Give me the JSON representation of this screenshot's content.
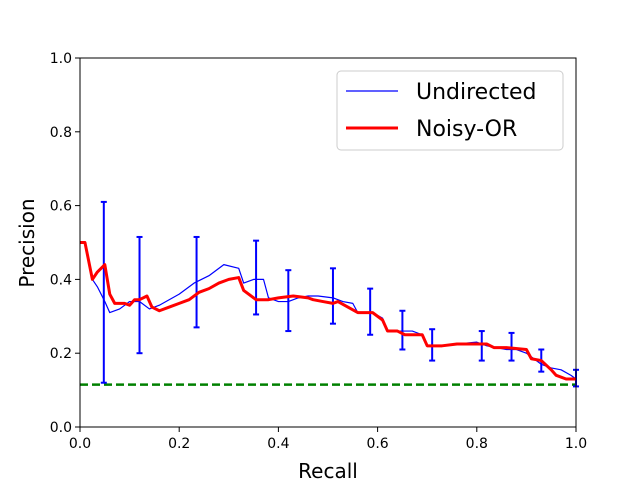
{
  "chart_data": {
    "type": "line",
    "xlabel": "Recall",
    "ylabel": "Precision",
    "xlim": [
      0.0,
      1.0
    ],
    "ylim": [
      0.0,
      1.0
    ],
    "xticks": [
      "0.0",
      "0.2",
      "0.4",
      "0.6",
      "0.8",
      "1.0"
    ],
    "yticks": [
      "0.0",
      "0.2",
      "0.4",
      "0.6",
      "0.8",
      "1.0"
    ],
    "grid": false,
    "legend_position": "top-right",
    "baseline": {
      "y": 0.115,
      "color": "#008000",
      "style": "dashed"
    },
    "series": [
      {
        "name": "Undirected",
        "color": "#0000ff",
        "points": [
          [
            0.0,
            0.5
          ],
          [
            0.01,
            0.5
          ],
          [
            0.025,
            0.4
          ],
          [
            0.035,
            0.38
          ],
          [
            0.05,
            0.34
          ],
          [
            0.06,
            0.31
          ],
          [
            0.08,
            0.32
          ],
          [
            0.1,
            0.34
          ],
          [
            0.12,
            0.34
          ],
          [
            0.14,
            0.32
          ],
          [
            0.16,
            0.33
          ],
          [
            0.2,
            0.36
          ],
          [
            0.23,
            0.39
          ],
          [
            0.26,
            0.41
          ],
          [
            0.29,
            0.44
          ],
          [
            0.32,
            0.43
          ],
          [
            0.33,
            0.39
          ],
          [
            0.35,
            0.4
          ],
          [
            0.37,
            0.4
          ],
          [
            0.38,
            0.35
          ],
          [
            0.4,
            0.34
          ],
          [
            0.42,
            0.34
          ],
          [
            0.44,
            0.35
          ],
          [
            0.46,
            0.355
          ],
          [
            0.48,
            0.355
          ],
          [
            0.51,
            0.35
          ],
          [
            0.53,
            0.34
          ],
          [
            0.55,
            0.335
          ],
          [
            0.56,
            0.31
          ],
          [
            0.59,
            0.31
          ],
          [
            0.61,
            0.295
          ],
          [
            0.62,
            0.26
          ],
          [
            0.65,
            0.26
          ],
          [
            0.67,
            0.26
          ],
          [
            0.69,
            0.25
          ],
          [
            0.7,
            0.22
          ],
          [
            0.73,
            0.22
          ],
          [
            0.76,
            0.225
          ],
          [
            0.8,
            0.23
          ],
          [
            0.82,
            0.22
          ],
          [
            0.84,
            0.215
          ],
          [
            0.86,
            0.21
          ],
          [
            0.88,
            0.21
          ],
          [
            0.9,
            0.2
          ],
          [
            0.91,
            0.19
          ],
          [
            0.93,
            0.17
          ],
          [
            0.95,
            0.16
          ],
          [
            0.97,
            0.155
          ],
          [
            0.99,
            0.14
          ],
          [
            1.0,
            0.13
          ]
        ],
        "error_bars": [
          {
            "x": 0.048,
            "y": 0.36,
            "low": 0.12,
            "high": 0.61
          },
          {
            "x": 0.12,
            "y": 0.34,
            "low": 0.2,
            "high": 0.515
          },
          {
            "x": 0.235,
            "y": 0.39,
            "low": 0.27,
            "high": 0.515
          },
          {
            "x": 0.355,
            "y": 0.4,
            "low": 0.305,
            "high": 0.505
          },
          {
            "x": 0.42,
            "y": 0.34,
            "low": 0.26,
            "high": 0.425
          },
          {
            "x": 0.51,
            "y": 0.35,
            "low": 0.28,
            "high": 0.43
          },
          {
            "x": 0.585,
            "y": 0.31,
            "low": 0.25,
            "high": 0.375
          },
          {
            "x": 0.65,
            "y": 0.26,
            "low": 0.21,
            "high": 0.315
          },
          {
            "x": 0.71,
            "y": 0.22,
            "low": 0.18,
            "high": 0.265
          },
          {
            "x": 0.81,
            "y": 0.22,
            "low": 0.18,
            "high": 0.26
          },
          {
            "x": 0.87,
            "y": 0.215,
            "low": 0.18,
            "high": 0.255
          },
          {
            "x": 0.93,
            "y": 0.18,
            "low": 0.15,
            "high": 0.21
          },
          {
            "x": 1.0,
            "y": 0.13,
            "low": 0.11,
            "high": 0.155
          }
        ]
      },
      {
        "name": "Noisy-OR",
        "color": "#ff0000",
        "points": [
          [
            0.0,
            0.5
          ],
          [
            0.01,
            0.5
          ],
          [
            0.025,
            0.4
          ],
          [
            0.035,
            0.42
          ],
          [
            0.05,
            0.44
          ],
          [
            0.06,
            0.36
          ],
          [
            0.07,
            0.335
          ],
          [
            0.09,
            0.335
          ],
          [
            0.1,
            0.33
          ],
          [
            0.11,
            0.345
          ],
          [
            0.12,
            0.345
          ],
          [
            0.135,
            0.355
          ],
          [
            0.145,
            0.325
          ],
          [
            0.16,
            0.315
          ],
          [
            0.18,
            0.325
          ],
          [
            0.2,
            0.335
          ],
          [
            0.22,
            0.345
          ],
          [
            0.24,
            0.365
          ],
          [
            0.26,
            0.375
          ],
          [
            0.28,
            0.39
          ],
          [
            0.3,
            0.4
          ],
          [
            0.32,
            0.405
          ],
          [
            0.33,
            0.37
          ],
          [
            0.355,
            0.345
          ],
          [
            0.38,
            0.345
          ],
          [
            0.4,
            0.35
          ],
          [
            0.43,
            0.355
          ],
          [
            0.46,
            0.35
          ],
          [
            0.47,
            0.345
          ],
          [
            0.49,
            0.34
          ],
          [
            0.51,
            0.335
          ],
          [
            0.52,
            0.34
          ],
          [
            0.54,
            0.325
          ],
          [
            0.56,
            0.31
          ],
          [
            0.59,
            0.31
          ],
          [
            0.61,
            0.29
          ],
          [
            0.62,
            0.26
          ],
          [
            0.64,
            0.26
          ],
          [
            0.655,
            0.25
          ],
          [
            0.69,
            0.25
          ],
          [
            0.7,
            0.22
          ],
          [
            0.73,
            0.22
          ],
          [
            0.76,
            0.225
          ],
          [
            0.79,
            0.225
          ],
          [
            0.82,
            0.225
          ],
          [
            0.835,
            0.215
          ],
          [
            0.86,
            0.215
          ],
          [
            0.9,
            0.21
          ],
          [
            0.91,
            0.185
          ],
          [
            0.93,
            0.18
          ],
          [
            0.95,
            0.155
          ],
          [
            0.96,
            0.14
          ],
          [
            0.98,
            0.13
          ],
          [
            1.0,
            0.13
          ]
        ]
      }
    ]
  }
}
